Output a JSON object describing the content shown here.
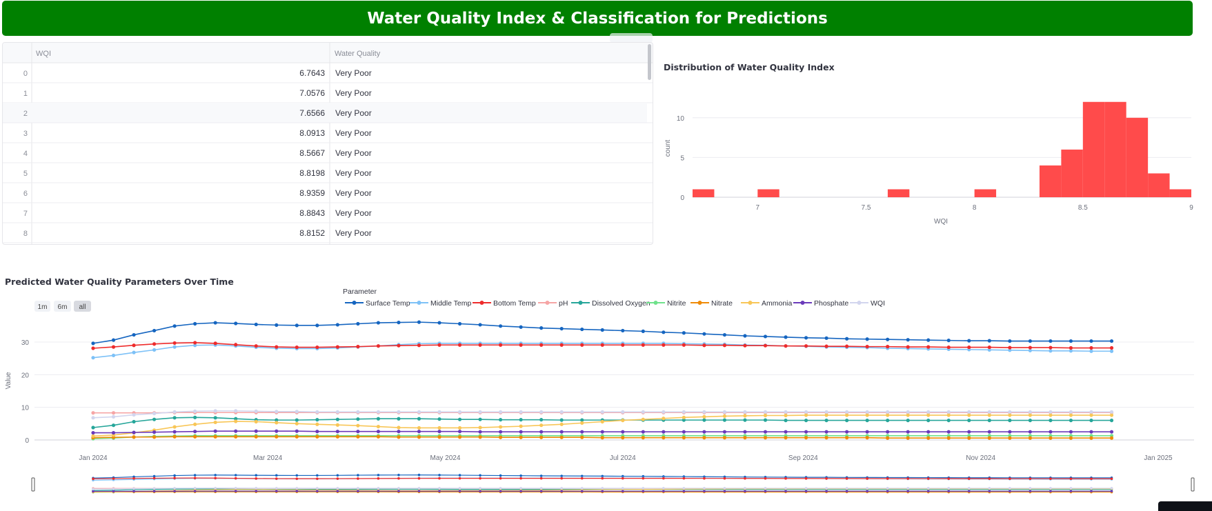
{
  "header": {
    "title": "Water Quality Index & Classification for Predictions"
  },
  "table": {
    "columns": [
      "WQI",
      "Water Quality"
    ],
    "rows": [
      {
        "index": "0",
        "wqi": "6.7643",
        "quality": "Very Poor"
      },
      {
        "index": "1",
        "wqi": "7.0576",
        "quality": "Very Poor"
      },
      {
        "index": "2",
        "wqi": "7.6566",
        "quality": "Very Poor"
      },
      {
        "index": "3",
        "wqi": "8.0913",
        "quality": "Very Poor"
      },
      {
        "index": "4",
        "wqi": "8.5667",
        "quality": "Very Poor"
      },
      {
        "index": "5",
        "wqi": "8.8198",
        "quality": "Very Poor"
      },
      {
        "index": "6",
        "wqi": "8.9359",
        "quality": "Very Poor"
      },
      {
        "index": "7",
        "wqi": "8.8843",
        "quality": "Very Poor"
      },
      {
        "index": "8",
        "wqi": "8.8152",
        "quality": "Very Poor"
      }
    ]
  },
  "colors": {
    "header_bg": "#008000",
    "histogram_bar": "#ff4b4b"
  },
  "chart_data": [
    {
      "type": "bar",
      "title": "Distribution of Water Quality Index",
      "xlabel": "WQI",
      "ylabel": "count",
      "xlim": [
        6.7,
        9.0
      ],
      "ylim": [
        0,
        12.5
      ],
      "x_ticks": [
        "7",
        "7.5",
        "8",
        "8.5",
        "9"
      ],
      "y_ticks": [
        "0",
        "5",
        "10"
      ],
      "bins": [
        {
          "x0": 6.7,
          "x1": 6.8,
          "count": 1
        },
        {
          "x0": 7.0,
          "x1": 7.1,
          "count": 1
        },
        {
          "x0": 7.6,
          "x1": 7.7,
          "count": 1
        },
        {
          "x0": 8.0,
          "x1": 8.1,
          "count": 1
        },
        {
          "x0": 8.3,
          "x1": 8.4,
          "count": 4
        },
        {
          "x0": 8.4,
          "x1": 8.5,
          "count": 6
        },
        {
          "x0": 8.5,
          "x1": 8.6,
          "count": 12
        },
        {
          "x0": 8.6,
          "x1": 8.7,
          "count": 12
        },
        {
          "x0": 8.7,
          "x1": 8.8,
          "count": 10
        },
        {
          "x0": 8.8,
          "x1": 8.9,
          "count": 3
        },
        {
          "x0": 8.9,
          "x1": 9.0,
          "count": 1
        }
      ]
    },
    {
      "type": "line",
      "title": "Predicted Water Quality Parameters Over Time",
      "ylabel": "Value",
      "legend_title": "Parameter",
      "legend_position": "top",
      "ylim": [
        -1,
        38
      ],
      "y_ticks": [
        "0",
        "10",
        "20",
        "30"
      ],
      "x_ticks": [
        "Jan 2024",
        "Mar 2024",
        "May 2024",
        "Jul 2024",
        "Sep 2024",
        "Nov 2024",
        "Jan 2025"
      ],
      "x_start": "2024-01-01",
      "x_step_days": 7,
      "range_buttons": [
        "1m",
        "6m",
        "all"
      ],
      "range_slider": true,
      "series": [
        {
          "name": "Surface Temp",
          "color": "#1565c0",
          "values": [
            29.6,
            30.6,
            32.2,
            33.5,
            34.9,
            35.6,
            35.9,
            35.7,
            35.4,
            35.2,
            35.1,
            35.1,
            35.3,
            35.6,
            35.9,
            36.0,
            36.1,
            35.9,
            35.6,
            35.3,
            34.9,
            34.6,
            34.3,
            34.1,
            33.9,
            33.7,
            33.5,
            33.3,
            33.0,
            32.8,
            32.5,
            32.2,
            31.9,
            31.7,
            31.5,
            31.3,
            31.2,
            31.0,
            30.9,
            30.8,
            30.7,
            30.6,
            30.5,
            30.4,
            30.4,
            30.3,
            30.3,
            30.3,
            30.3,
            30.3,
            30.3
          ]
        },
        {
          "name": "Middle Temp",
          "color": "#7dc1f7",
          "values": [
            25.2,
            25.9,
            26.8,
            27.6,
            28.5,
            29.0,
            29.1,
            28.8,
            28.4,
            28.1,
            28.0,
            28.0,
            28.2,
            28.5,
            28.8,
            29.2,
            29.5,
            29.6,
            29.6,
            29.6,
            29.6,
            29.6,
            29.6,
            29.6,
            29.6,
            29.6,
            29.6,
            29.6,
            29.6,
            29.5,
            29.4,
            29.3,
            29.1,
            29.0,
            28.8,
            28.7,
            28.5,
            28.4,
            28.3,
            28.1,
            28.0,
            27.9,
            27.8,
            27.7,
            27.6,
            27.5,
            27.4,
            27.3,
            27.3,
            27.2,
            27.2
          ]
        },
        {
          "name": "Bottom Temp",
          "color": "#ee2b2b",
          "values": [
            28.1,
            28.5,
            29.0,
            29.4,
            29.7,
            29.8,
            29.6,
            29.2,
            28.8,
            28.5,
            28.4,
            28.4,
            28.5,
            28.6,
            28.8,
            28.9,
            29.0,
            29.1,
            29.1,
            29.1,
            29.1,
            29.1,
            29.1,
            29.1,
            29.1,
            29.1,
            29.1,
            29.1,
            29.1,
            29.1,
            29.0,
            29.0,
            28.9,
            28.9,
            28.8,
            28.8,
            28.7,
            28.7,
            28.6,
            28.6,
            28.5,
            28.5,
            28.4,
            28.4,
            28.4,
            28.3,
            28.3,
            28.3,
            28.2,
            28.2,
            28.2
          ]
        },
        {
          "name": "pH",
          "color": "#f6a5a5",
          "values": [
            8.3,
            8.3,
            8.3,
            8.3,
            8.4,
            8.4,
            8.4,
            8.4,
            8.4,
            8.4,
            8.4,
            8.4,
            8.4,
            8.4,
            8.4,
            8.4,
            8.4,
            8.4,
            8.4,
            8.4,
            8.4,
            8.4,
            8.4,
            8.4,
            8.4,
            8.4,
            8.4,
            8.4,
            8.4,
            8.4,
            8.4,
            8.4,
            8.4,
            8.4,
            8.4,
            8.4,
            8.4,
            8.4,
            8.4,
            8.4,
            8.4,
            8.4,
            8.4,
            8.4,
            8.4,
            8.4,
            8.4,
            8.4,
            8.4,
            8.4,
            8.4
          ]
        },
        {
          "name": "Dissolved Oxygen",
          "color": "#26a69a",
          "values": [
            3.8,
            4.5,
            5.6,
            6.3,
            6.8,
            6.9,
            6.8,
            6.5,
            6.2,
            6.1,
            6.1,
            6.2,
            6.3,
            6.4,
            6.5,
            6.5,
            6.5,
            6.4,
            6.3,
            6.3,
            6.2,
            6.2,
            6.2,
            6.1,
            6.1,
            6.1,
            6.1,
            6.1,
            6.1,
            6.1,
            6.1,
            6.1,
            6.1,
            6.1,
            6.0,
            6.0,
            6.0,
            6.0,
            6.0,
            6.0,
            6.0,
            6.0,
            6.0,
            6.0,
            6.0,
            6.0,
            6.0,
            6.0,
            6.0,
            6.0,
            6.0
          ]
        },
        {
          "name": "Nitrite",
          "color": "#6fe28b",
          "values": [
            0.4,
            0.6,
            0.9,
            1.1,
            1.2,
            1.3,
            1.3,
            1.3,
            1.3,
            1.3,
            1.3,
            1.3,
            1.3,
            1.3,
            1.3,
            1.3,
            1.3,
            1.3,
            1.3,
            1.3,
            1.3,
            1.3,
            1.3,
            1.3,
            1.3,
            1.3,
            1.3,
            1.3,
            1.3,
            1.3,
            1.3,
            1.3,
            1.3,
            1.3,
            1.3,
            1.3,
            1.3,
            1.3,
            1.3,
            1.3,
            1.3,
            1.3,
            1.3,
            1.3,
            1.3,
            1.3,
            1.3,
            1.3,
            1.3,
            1.3,
            1.3
          ]
        },
        {
          "name": "Nitrate",
          "color": "#ef8a07",
          "values": [
            0.7,
            0.8,
            0.9,
            0.9,
            1.0,
            1.0,
            1.0,
            1.0,
            1.0,
            1.0,
            1.0,
            1.0,
            1.0,
            1.0,
            1.0,
            0.9,
            0.9,
            0.9,
            0.9,
            0.9,
            0.8,
            0.8,
            0.8,
            0.8,
            0.8,
            0.7,
            0.7,
            0.7,
            0.7,
            0.7,
            0.7,
            0.7,
            0.7,
            0.7,
            0.7,
            0.7,
            0.7,
            0.7,
            0.7,
            0.6,
            0.6,
            0.6,
            0.6,
            0.6,
            0.6,
            0.6,
            0.6,
            0.6,
            0.6,
            0.6,
            0.6
          ]
        },
        {
          "name": "Ammonia",
          "color": "#f8c657",
          "values": [
            1.2,
            1.5,
            2.2,
            3.0,
            4.0,
            4.8,
            5.4,
            5.7,
            5.6,
            5.3,
            5.0,
            4.8,
            4.6,
            4.4,
            4.1,
            3.8,
            3.7,
            3.7,
            3.7,
            3.8,
            4.0,
            4.2,
            4.5,
            4.8,
            5.2,
            5.6,
            6.0,
            6.3,
            6.6,
            6.9,
            7.1,
            7.3,
            7.4,
            7.5,
            7.5,
            7.6,
            7.6,
            7.6,
            7.6,
            7.6,
            7.6,
            7.6,
            7.6,
            7.6,
            7.6,
            7.6,
            7.6,
            7.6,
            7.6,
            7.6,
            7.6
          ]
        },
        {
          "name": "Phosphate",
          "color": "#6a3aba",
          "values": [
            2.2,
            2.2,
            2.3,
            2.4,
            2.5,
            2.6,
            2.7,
            2.7,
            2.7,
            2.7,
            2.7,
            2.6,
            2.6,
            2.6,
            2.6,
            2.6,
            2.6,
            2.6,
            2.6,
            2.5,
            2.5,
            2.5,
            2.5,
            2.5,
            2.5,
            2.5,
            2.5,
            2.5,
            2.5,
            2.5,
            2.5,
            2.5,
            2.5,
            2.5,
            2.5,
            2.5,
            2.5,
            2.5,
            2.5,
            2.5,
            2.5,
            2.5,
            2.5,
            2.5,
            2.5,
            2.5,
            2.5,
            2.5,
            2.5,
            2.5,
            2.5
          ]
        },
        {
          "name": "WQI",
          "color": "#d2d5ee",
          "values": [
            6.8,
            7.1,
            7.7,
            8.1,
            8.6,
            8.8,
            8.9,
            8.9,
            8.8,
            8.7,
            8.7,
            8.6,
            8.6,
            8.6,
            8.6,
            8.6,
            8.6,
            8.6,
            8.6,
            8.6,
            8.6,
            8.6,
            8.6,
            8.6,
            8.6,
            8.6,
            8.6,
            8.6,
            8.6,
            8.6,
            8.6,
            8.6,
            8.6,
            8.6,
            8.6,
            8.6,
            8.6,
            8.6,
            8.6,
            8.6,
            8.6,
            8.6,
            8.6,
            8.6,
            8.6,
            8.6,
            8.6,
            8.6,
            8.6,
            8.6,
            8.6
          ]
        }
      ]
    }
  ]
}
